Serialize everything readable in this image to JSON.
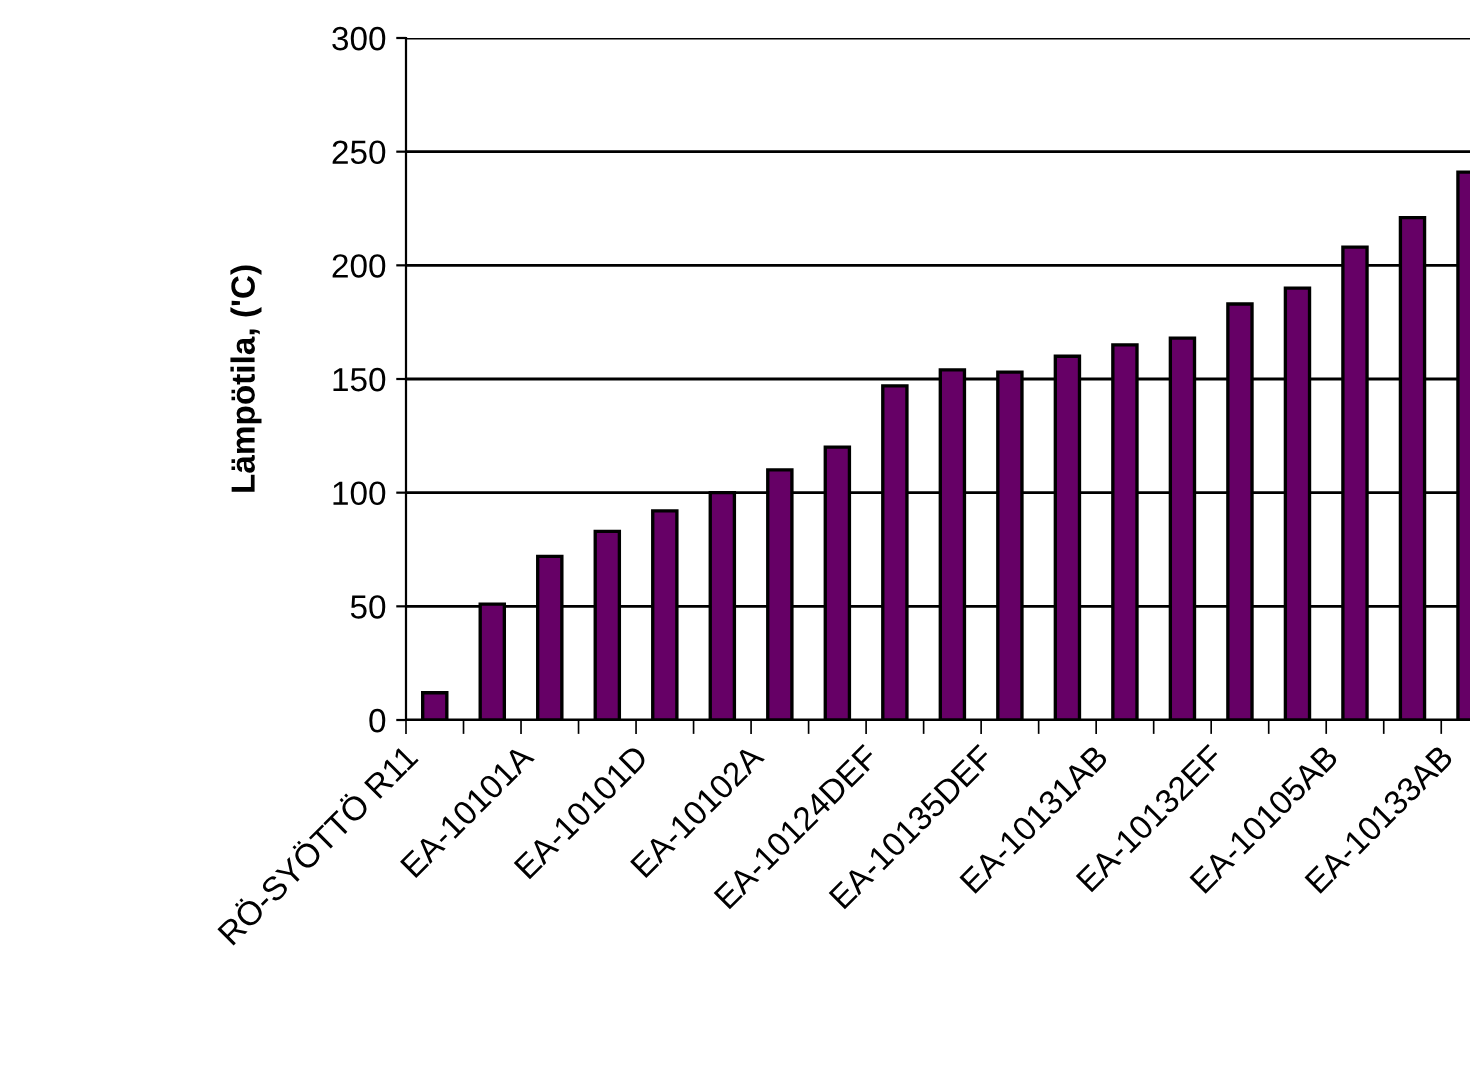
{
  "chart_data": {
    "type": "bar",
    "ylabel": "Lämpötila, ('C)",
    "categories": [
      "RÖ-SYÖTTÖ R11",
      null,
      "EA-10101A",
      null,
      "EA-10101D",
      null,
      "EA-10102A",
      null,
      "EA-10124DEF",
      null,
      "EA-10135DEF",
      null,
      "EA-10131AB",
      null,
      "EA-10132EF",
      null,
      "EA-10105AB",
      null,
      "EA-10133AB"
    ],
    "values": [
      12,
      51,
      72,
      83,
      92,
      100,
      110,
      120,
      147,
      154,
      153,
      160,
      165,
      168,
      183,
      190,
      208,
      221,
      241
    ],
    "color": "#660066",
    "ylim": [
      0,
      300
    ],
    "yticks": [
      0,
      50,
      100,
      150,
      200,
      250,
      300
    ],
    "grid": "y"
  }
}
